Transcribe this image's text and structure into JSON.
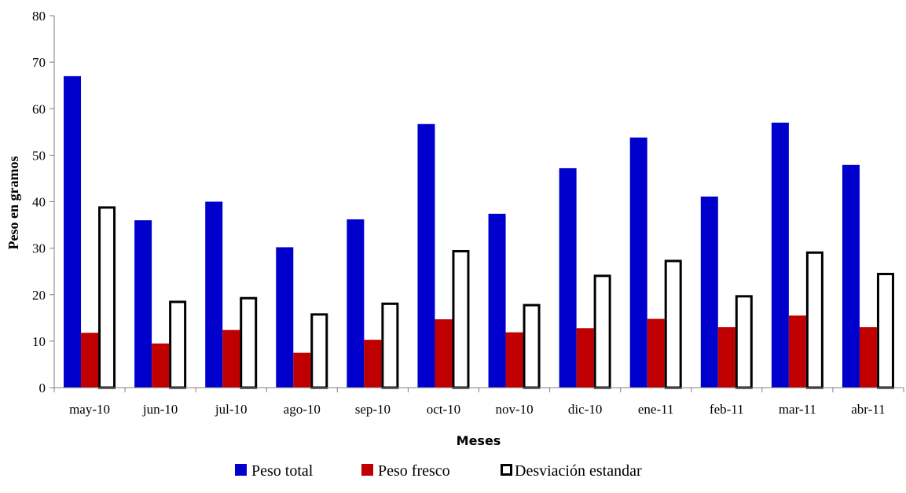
{
  "chart_data": {
    "type": "bar",
    "categories": [
      "may-10",
      "jun-10",
      "jul-10",
      "ago-10",
      "sep-10",
      "oct-10",
      "nov-10",
      "dic-10",
      "ene-11",
      "feb-11",
      "mar-11",
      "abr-11"
    ],
    "series": [
      {
        "name": "Peso total",
        "color": "#0000cc",
        "style": "filled",
        "values": [
          67.0,
          36.0,
          40.0,
          30.2,
          36.2,
          56.7,
          37.4,
          47.2,
          53.8,
          41.1,
          57.0,
          47.9
        ]
      },
      {
        "name": "Peso fresco",
        "color": "#c00000",
        "style": "filled",
        "values": [
          11.8,
          9.5,
          12.4,
          7.5,
          10.3,
          14.7,
          11.9,
          12.8,
          14.8,
          13.0,
          15.5,
          13.0
        ]
      },
      {
        "name": "Desviación estandar",
        "color": "#000000",
        "style": "outline",
        "values": [
          39.0,
          18.7,
          19.5,
          16.0,
          18.3,
          29.6,
          18.0,
          24.3,
          27.5,
          19.9,
          29.3,
          24.7
        ]
      }
    ],
    "title": "",
    "xlabel": "Meses",
    "ylabel": "Peso en gramos",
    "ylim": [
      0,
      80
    ],
    "yticks": [
      0,
      10,
      20,
      30,
      40,
      50,
      60,
      70,
      80
    ],
    "grid": false,
    "legend_position": "bottom"
  }
}
